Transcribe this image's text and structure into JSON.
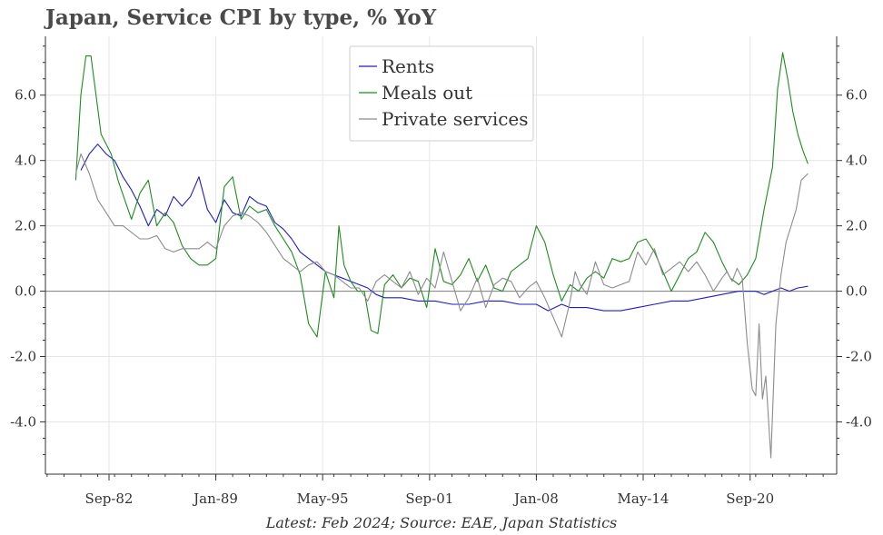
{
  "chart_data": {
    "type": "line",
    "title": "Japan, Service CPI by type, % YoY",
    "source": "Latest: Feb 2024; Source: EAE, Japan Statistics",
    "ylim": [
      -5.6,
      7.8
    ],
    "yticks": [
      -4.0,
      -2.0,
      0.0,
      2.0,
      4.0,
      6.0
    ],
    "ytick_labels": [
      "-4.0",
      "-2.0",
      "0.0",
      "2.0",
      "4.0",
      "6.0"
    ],
    "xlim": [
      1978.9,
      2025.8
    ],
    "xticks": [
      1982.67,
      1989.0,
      1995.33,
      2001.67,
      2008.0,
      2014.33,
      2020.67
    ],
    "xtick_labels": [
      "Sep-82",
      "Jan-89",
      "May-95",
      "Sep-01",
      "Jan-08",
      "May-14",
      "Sep-20"
    ],
    "grid": true,
    "legend_position": "top-center",
    "series": [
      {
        "name": "Rents",
        "color": "#1c1ccc",
        "x": [
          1981.0,
          1981.5,
          1982.0,
          1982.5,
          1983.0,
          1983.5,
          1984.0,
          1984.5,
          1985.0,
          1985.5,
          1986.0,
          1986.5,
          1987.0,
          1987.5,
          1988.0,
          1988.5,
          1989.0,
          1989.5,
          1990.0,
          1990.5,
          1991.0,
          1991.5,
          1992.0,
          1992.5,
          1993.0,
          1993.5,
          1994.0,
          1994.5,
          1995.0,
          1995.5,
          1996.0,
          1996.5,
          1997.0,
          1997.5,
          1998.0,
          1998.5,
          1999.0,
          2000.0,
          2001.0,
          2002.0,
          2003.0,
          2004.0,
          2005.0,
          2006.0,
          2007.0,
          2008.0,
          2008.7,
          2009.5,
          2010.0,
          2011.0,
          2012.0,
          2013.0,
          2014.0,
          2015.0,
          2016.0,
          2017.0,
          2018.0,
          2019.0,
          2020.0,
          2021.0,
          2021.5,
          2022.0,
          2022.5,
          2023.0,
          2023.5,
          2024.1
        ],
        "values": [
          3.7,
          4.2,
          4.5,
          4.2,
          4.0,
          3.5,
          3.1,
          2.6,
          2.0,
          2.5,
          2.3,
          2.9,
          2.6,
          2.9,
          3.5,
          2.5,
          2.1,
          2.8,
          2.4,
          2.3,
          2.9,
          2.7,
          2.6,
          2.1,
          1.9,
          1.6,
          1.2,
          1.0,
          0.8,
          0.6,
          0.5,
          0.4,
          0.3,
          0.2,
          0.1,
          -0.1,
          -0.2,
          -0.2,
          -0.3,
          -0.3,
          -0.4,
          -0.4,
          -0.3,
          -0.3,
          -0.4,
          -0.4,
          -0.6,
          -0.4,
          -0.5,
          -0.5,
          -0.6,
          -0.6,
          -0.5,
          -0.4,
          -0.3,
          -0.3,
          -0.2,
          -0.1,
          0.0,
          0.0,
          -0.1,
          0.0,
          0.1,
          0.0,
          0.1,
          0.15
        ]
      },
      {
        "name": "Meals out",
        "color": "#1e8c1e",
        "x": [
          1980.7,
          1981.0,
          1981.3,
          1981.6,
          1981.9,
          1982.2,
          1982.5,
          1982.8,
          1983.2,
          1983.6,
          1984.0,
          1984.5,
          1985.0,
          1985.5,
          1986.0,
          1986.5,
          1987.0,
          1987.5,
          1988.0,
          1988.5,
          1989.0,
          1989.5,
          1990.0,
          1990.5,
          1991.0,
          1991.5,
          1992.0,
          1992.5,
          1993.0,
          1993.5,
          1994.0,
          1994.5,
          1995.0,
          1995.5,
          1996.0,
          1996.3,
          1996.6,
          1997.0,
          1997.4,
          1997.8,
          1998.2,
          1998.6,
          1999.0,
          1999.5,
          2000.0,
          2000.5,
          2001.0,
          2001.5,
          2002.0,
          2002.5,
          2003.0,
          2003.5,
          2004.0,
          2004.5,
          2005.0,
          2005.5,
          2006.0,
          2006.5,
          2007.0,
          2007.5,
          2008.0,
          2008.5,
          2009.0,
          2009.5,
          2010.0,
          2010.5,
          2011.0,
          2011.5,
          2012.0,
          2012.5,
          2013.0,
          2013.5,
          2014.0,
          2014.5,
          2015.0,
          2015.5,
          2016.0,
          2016.5,
          2017.0,
          2017.5,
          2018.0,
          2018.5,
          2019.0,
          2019.5,
          2020.0,
          2020.5,
          2021.0,
          2021.5,
          2022.0,
          2022.3,
          2022.6,
          2022.9,
          2023.2,
          2023.5,
          2023.8,
          2024.1
        ],
        "values": [
          3.4,
          6.0,
          7.2,
          7.2,
          6.0,
          4.8,
          4.5,
          4.2,
          3.4,
          2.8,
          2.2,
          3.0,
          3.4,
          2.0,
          2.4,
          2.1,
          1.4,
          1.0,
          0.8,
          0.8,
          1.0,
          3.2,
          3.5,
          2.2,
          2.6,
          2.4,
          2.5,
          2.0,
          1.6,
          1.2,
          0.5,
          -1.0,
          -1.4,
          0.6,
          -0.2,
          2.0,
          0.8,
          0.3,
          0.0,
          0.0,
          -1.2,
          -1.3,
          0.2,
          0.5,
          0.1,
          0.4,
          0.3,
          -0.5,
          1.3,
          0.3,
          0.2,
          0.5,
          1.0,
          0.3,
          0.8,
          0.1,
          0.0,
          0.6,
          0.8,
          1.0,
          2.0,
          1.5,
          0.5,
          -0.3,
          0.2,
          0.0,
          0.4,
          0.6,
          0.4,
          1.0,
          0.9,
          1.0,
          1.5,
          1.6,
          1.2,
          0.6,
          0.0,
          0.5,
          1.0,
          1.2,
          1.8,
          1.5,
          0.9,
          0.4,
          0.2,
          0.5,
          1.0,
          2.5,
          3.8,
          6.2,
          7.3,
          6.5,
          5.5,
          4.8,
          4.3,
          3.9
        ]
      },
      {
        "name": "Private services",
        "color": "#8c8c8c",
        "x": [
          1980.7,
          1981.0,
          1981.5,
          1982.0,
          1982.5,
          1983.0,
          1983.5,
          1984.0,
          1984.5,
          1985.0,
          1985.5,
          1986.0,
          1986.5,
          1987.0,
          1987.5,
          1988.0,
          1988.5,
          1989.0,
          1989.5,
          1990.0,
          1990.5,
          1991.0,
          1991.5,
          1992.0,
          1992.5,
          1993.0,
          1993.5,
          1994.0,
          1994.5,
          1995.0,
          1995.5,
          1996.0,
          1996.5,
          1997.0,
          1997.5,
          1998.0,
          1998.5,
          1999.0,
          1999.5,
          2000.0,
          2000.5,
          2001.0,
          2001.5,
          2002.0,
          2002.5,
          2003.0,
          2003.5,
          2004.0,
          2004.5,
          2005.0,
          2005.5,
          2006.0,
          2006.5,
          2007.0,
          2007.5,
          2008.0,
          2008.5,
          2009.0,
          2009.5,
          2010.0,
          2010.3,
          2010.6,
          2011.0,
          2011.5,
          2012.0,
          2012.5,
          2013.0,
          2013.5,
          2014.0,
          2014.5,
          2015.0,
          2015.5,
          2016.0,
          2016.5,
          2017.0,
          2017.5,
          2018.0,
          2018.5,
          2019.0,
          2019.3,
          2019.6,
          2019.9,
          2020.2,
          2020.5,
          2020.8,
          2021.0,
          2021.2,
          2021.4,
          2021.6,
          2021.9,
          2022.2,
          2022.5,
          2022.8,
          2023.1,
          2023.4,
          2023.7,
          2024.1
        ],
        "values": [
          3.6,
          4.2,
          3.6,
          2.8,
          2.4,
          2.0,
          2.0,
          1.8,
          1.6,
          1.6,
          1.7,
          1.3,
          1.2,
          1.3,
          1.3,
          1.3,
          1.5,
          1.3,
          2.0,
          2.3,
          2.4,
          2.3,
          2.1,
          1.8,
          1.4,
          1.0,
          0.8,
          0.6,
          0.8,
          0.9,
          0.6,
          0.5,
          0.3,
          0.1,
          0.1,
          -0.3,
          0.3,
          0.5,
          0.3,
          0.1,
          0.6,
          -0.1,
          0.4,
          0.1,
          1.2,
          0.3,
          -0.6,
          -0.2,
          0.4,
          -0.5,
          0.2,
          0.4,
          0.3,
          -0.2,
          0.1,
          0.3,
          -0.2,
          -0.8,
          -1.4,
          -0.3,
          0.6,
          0.2,
          -0.1,
          0.9,
          0.2,
          0.1,
          0.2,
          0.3,
          1.2,
          0.8,
          1.3,
          0.5,
          0.7,
          0.9,
          0.6,
          0.9,
          0.5,
          0.0,
          0.4,
          0.6,
          0.3,
          0.7,
          0.4,
          -1.6,
          -3.0,
          -3.2,
          -1.0,
          -3.3,
          -2.6,
          -5.1,
          -1.0,
          0.5,
          1.5,
          2.0,
          2.5,
          3.4,
          3.6
        ]
      }
    ]
  }
}
